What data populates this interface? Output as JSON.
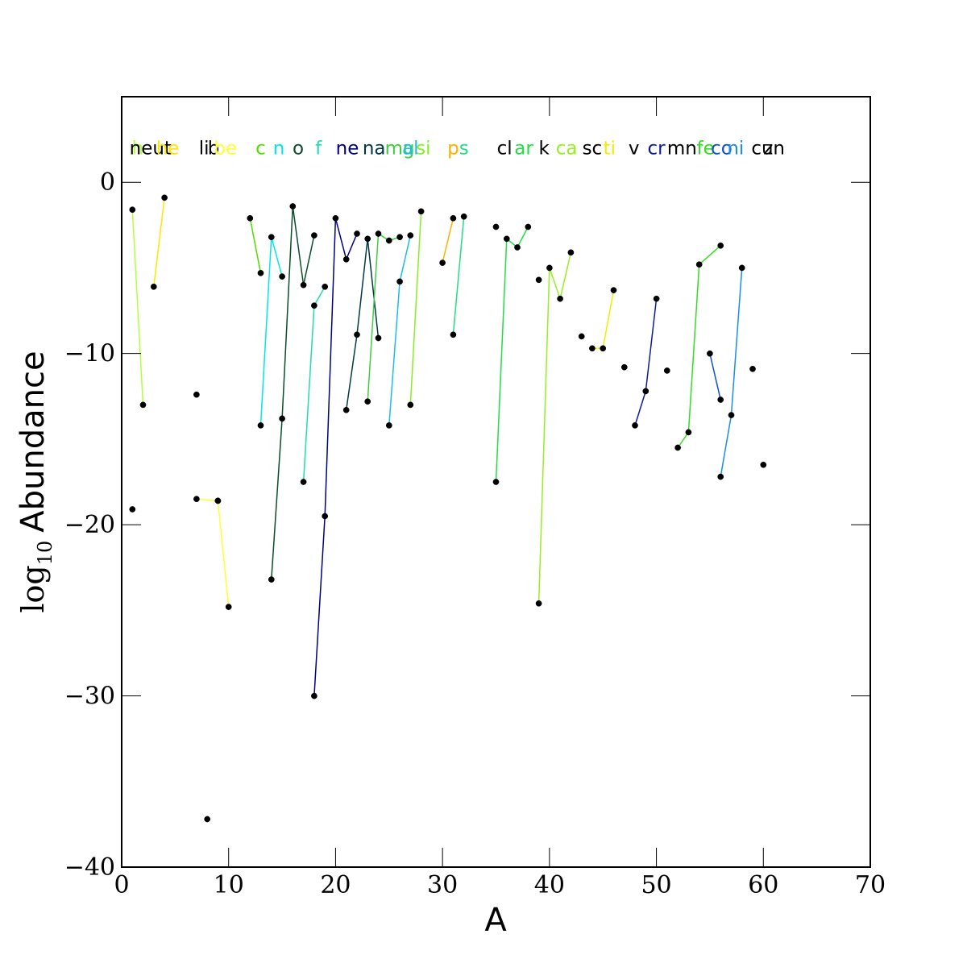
{
  "chart_data": {
    "type": "line",
    "title": "",
    "xlabel": "A",
    "ylabel_main": "Abundance",
    "ylabel_log": "log",
    "ylabel_sub": "10",
    "xlim": [
      0,
      70
    ],
    "ylim": [
      -40,
      5
    ],
    "xticks": [
      0,
      10,
      20,
      30,
      40,
      50,
      60,
      70
    ],
    "yticks": [
      0,
      -10,
      -20,
      -30,
      -40
    ],
    "xtick_labels": [
      "0",
      "10",
      "20",
      "30",
      "40",
      "50",
      "60",
      "70"
    ],
    "ytick_labels": [
      "0",
      "−10",
      "−20",
      "−30",
      "−40"
    ],
    "grid": false,
    "legend": "none",
    "marker_color": "#000000",
    "series": [
      {
        "name": "h",
        "color": "#b3ff3f",
        "x": [
          1,
          2
        ],
        "y": [
          -1.6,
          -13.0
        ]
      },
      {
        "name": "he",
        "color": "#ffe600",
        "x": [
          3,
          4
        ],
        "y": [
          -6.1,
          -0.9
        ]
      },
      {
        "name": "li",
        "color": "#000000",
        "x": [
          7
        ],
        "y": [
          -12.4
        ]
      },
      {
        "name": "be",
        "color": "#ffff33",
        "x": [
          7,
          9
        ],
        "y": [
          -18.5,
          -18.6
        ]
      },
      {
        "name": "b",
        "color": "#ffff33",
        "x": [
          9,
          10
        ],
        "y": [
          -18.6,
          -24.8
        ]
      },
      {
        "name": "c",
        "color": "#55dd00",
        "x": [
          12,
          13
        ],
        "y": [
          -2.1,
          -5.3
        ]
      },
      {
        "name": "n",
        "color": "#00e5ee",
        "x": [
          13,
          14,
          15
        ],
        "y": [
          -14.2,
          -3.2,
          -5.5
        ]
      },
      {
        "name": "o",
        "color": "#0b4d2a",
        "x": [
          14,
          15,
          16,
          17,
          18
        ],
        "y": [
          -23.2,
          -13.8,
          -1.4,
          -6.0,
          -3.1
        ]
      },
      {
        "name": "f",
        "color": "#20ddaa",
        "x": [
          17,
          18,
          19
        ],
        "y": [
          -17.5,
          -7.2,
          -6.1
        ]
      },
      {
        "name": "ne",
        "color": "#000080",
        "x": [
          18,
          19,
          20,
          21,
          22
        ],
        "y": [
          -30.0,
          -19.5,
          -2.1,
          -4.5,
          -3.0
        ]
      },
      {
        "name": "na",
        "color": "#003844",
        "x": [
          21,
          22,
          23,
          24
        ],
        "y": [
          -13.3,
          -8.9,
          -3.3,
          -9.1
        ]
      },
      {
        "name": "mg",
        "color": "#3ecf3e",
        "x": [
          23,
          24,
          25,
          26
        ],
        "y": [
          -12.8,
          -3.0,
          -3.4,
          -3.2
        ]
      },
      {
        "name": "al",
        "color": "#1abcf0",
        "x": [
          25,
          26,
          27
        ],
        "y": [
          -14.2,
          -5.8,
          -3.1
        ]
      },
      {
        "name": "si",
        "color": "#88ee22",
        "x": [
          27,
          28
        ],
        "y": [
          -13.0,
          -1.7
        ]
      },
      {
        "name": "p",
        "color": "#ffb000",
        "x": [
          30,
          31
        ],
        "y": [
          -4.7,
          -2.1
        ]
      },
      {
        "name": "s",
        "color": "#22dd88",
        "x": [
          31,
          32
        ],
        "y": [
          -8.9,
          -2.0
        ]
      },
      {
        "name": "cl",
        "color": "#000000",
        "x": [
          35
        ],
        "y": [
          -2.6
        ]
      },
      {
        "name": "ar",
        "color": "#22dd44",
        "x": [
          35,
          36,
          37,
          38
        ],
        "y": [
          -17.5,
          -3.3,
          -3.8,
          -2.6
        ]
      },
      {
        "name": "k",
        "color": "#000000",
        "x": [
          39
        ],
        "y": [
          -5.7
        ]
      },
      {
        "name": "ca",
        "color": "#99ee22",
        "x": [
          39,
          40,
          41,
          42
        ],
        "y": [
          -24.6,
          -5.0,
          -6.8,
          -4.1
        ]
      },
      {
        "name": "sc",
        "color": "#000000",
        "x": [
          43
        ],
        "y": [
          -9.0
        ]
      },
      {
        "name": "ti",
        "color": "#eeee00",
        "x": [
          44,
          45,
          46
        ],
        "y": [
          -9.7,
          -9.7,
          -6.3
        ]
      },
      {
        "name": "v",
        "color": "#000000",
        "x": [
          47
        ],
        "y": [
          -10.8
        ]
      },
      {
        "name": "cr",
        "color": "#0a1a9a",
        "x": [
          48,
          49,
          50
        ],
        "y": [
          -14.2,
          -12.2,
          -6.8
        ]
      },
      {
        "name": "mn",
        "color": "#000000",
        "x": [
          51
        ],
        "y": [
          -11.0
        ]
      },
      {
        "name": "fe",
        "color": "#33dd22",
        "x": [
          52,
          53,
          54,
          56
        ],
        "y": [
          -15.5,
          -14.6,
          -4.8,
          -3.7
        ]
      },
      {
        "name": "co",
        "color": "#1050c8",
        "x": [
          55,
          56
        ],
        "y": [
          -10.0,
          -12.7
        ]
      },
      {
        "name": "ni",
        "color": "#1a8cee",
        "x": [
          56,
          57,
          58
        ],
        "y": [
          -17.2,
          -13.6,
          -5.0
        ]
      },
      {
        "name": "cu",
        "color": "#000000",
        "x": [
          59
        ],
        "y": [
          -10.9
        ]
      },
      {
        "name": "zn",
        "color": "#000000",
        "x": [
          60
        ],
        "y": [
          -16.5
        ]
      },
      {
        "name": "n_neut",
        "color": "#000000",
        "x": [
          1
        ],
        "y": [
          -19.1
        ]
      },
      {
        "name": "b_boron",
        "color": "#000000",
        "x": [
          8
        ],
        "y": [
          -37.2
        ]
      }
    ],
    "element_labels": [
      {
        "text": "h",
        "x": 1.5,
        "color": "#b3ff3f"
      },
      {
        "text": "neut",
        "x": 2.7,
        "color": "#000000"
      },
      {
        "text": "he",
        "x": 4.3,
        "color": "#ffe600"
      },
      {
        "text": "li",
        "x": 7.7,
        "color": "#000000"
      },
      {
        "text": "b",
        "x": 8.6,
        "color": "#000000"
      },
      {
        "text": "be",
        "x": 9.7,
        "color": "#ffff33"
      },
      {
        "text": "c",
        "x": 13.0,
        "color": "#55dd00"
      },
      {
        "text": "n",
        "x": 14.7,
        "color": "#00e5ee"
      },
      {
        "text": "o",
        "x": 16.5,
        "color": "#0b4d2a"
      },
      {
        "text": "f",
        "x": 18.4,
        "color": "#20ddaa"
      },
      {
        "text": "ne",
        "x": 21.1,
        "color": "#000080"
      },
      {
        "text": "na",
        "x": 23.6,
        "color": "#003844"
      },
      {
        "text": "mg",
        "x": 26.0,
        "color": "#3ecf3e"
      },
      {
        "text": "al",
        "x": 27.0,
        "color": "#1abcf0"
      },
      {
        "text": "si",
        "x": 28.2,
        "color": "#88ee22"
      },
      {
        "text": "p",
        "x": 31.0,
        "color": "#ffb000"
      },
      {
        "text": "s",
        "x": 32.0,
        "color": "#22dd88"
      },
      {
        "text": "cl",
        "x": 35.8,
        "color": "#000000"
      },
      {
        "text": "ar",
        "x": 37.6,
        "color": "#22dd44"
      },
      {
        "text": "k",
        "x": 39.5,
        "color": "#000000"
      },
      {
        "text": "ca",
        "x": 41.6,
        "color": "#99ee22"
      },
      {
        "text": "sc",
        "x": 44.0,
        "color": "#000000"
      },
      {
        "text": "ti",
        "x": 45.6,
        "color": "#eeee00"
      },
      {
        "text": "v",
        "x": 47.9,
        "color": "#000000"
      },
      {
        "text": "cr",
        "x": 50.0,
        "color": "#0a1a9a"
      },
      {
        "text": "mn",
        "x": 52.4,
        "color": "#000000"
      },
      {
        "text": "fe",
        "x": 54.6,
        "color": "#33dd22"
      },
      {
        "text": "co",
        "x": 56.1,
        "color": "#1050c8"
      },
      {
        "text": "ni",
        "x": 57.4,
        "color": "#1a8cee"
      },
      {
        "text": "cu",
        "x": 59.9,
        "color": "#000000"
      },
      {
        "text": "zn",
        "x": 61.0,
        "color": "#000000"
      }
    ]
  }
}
